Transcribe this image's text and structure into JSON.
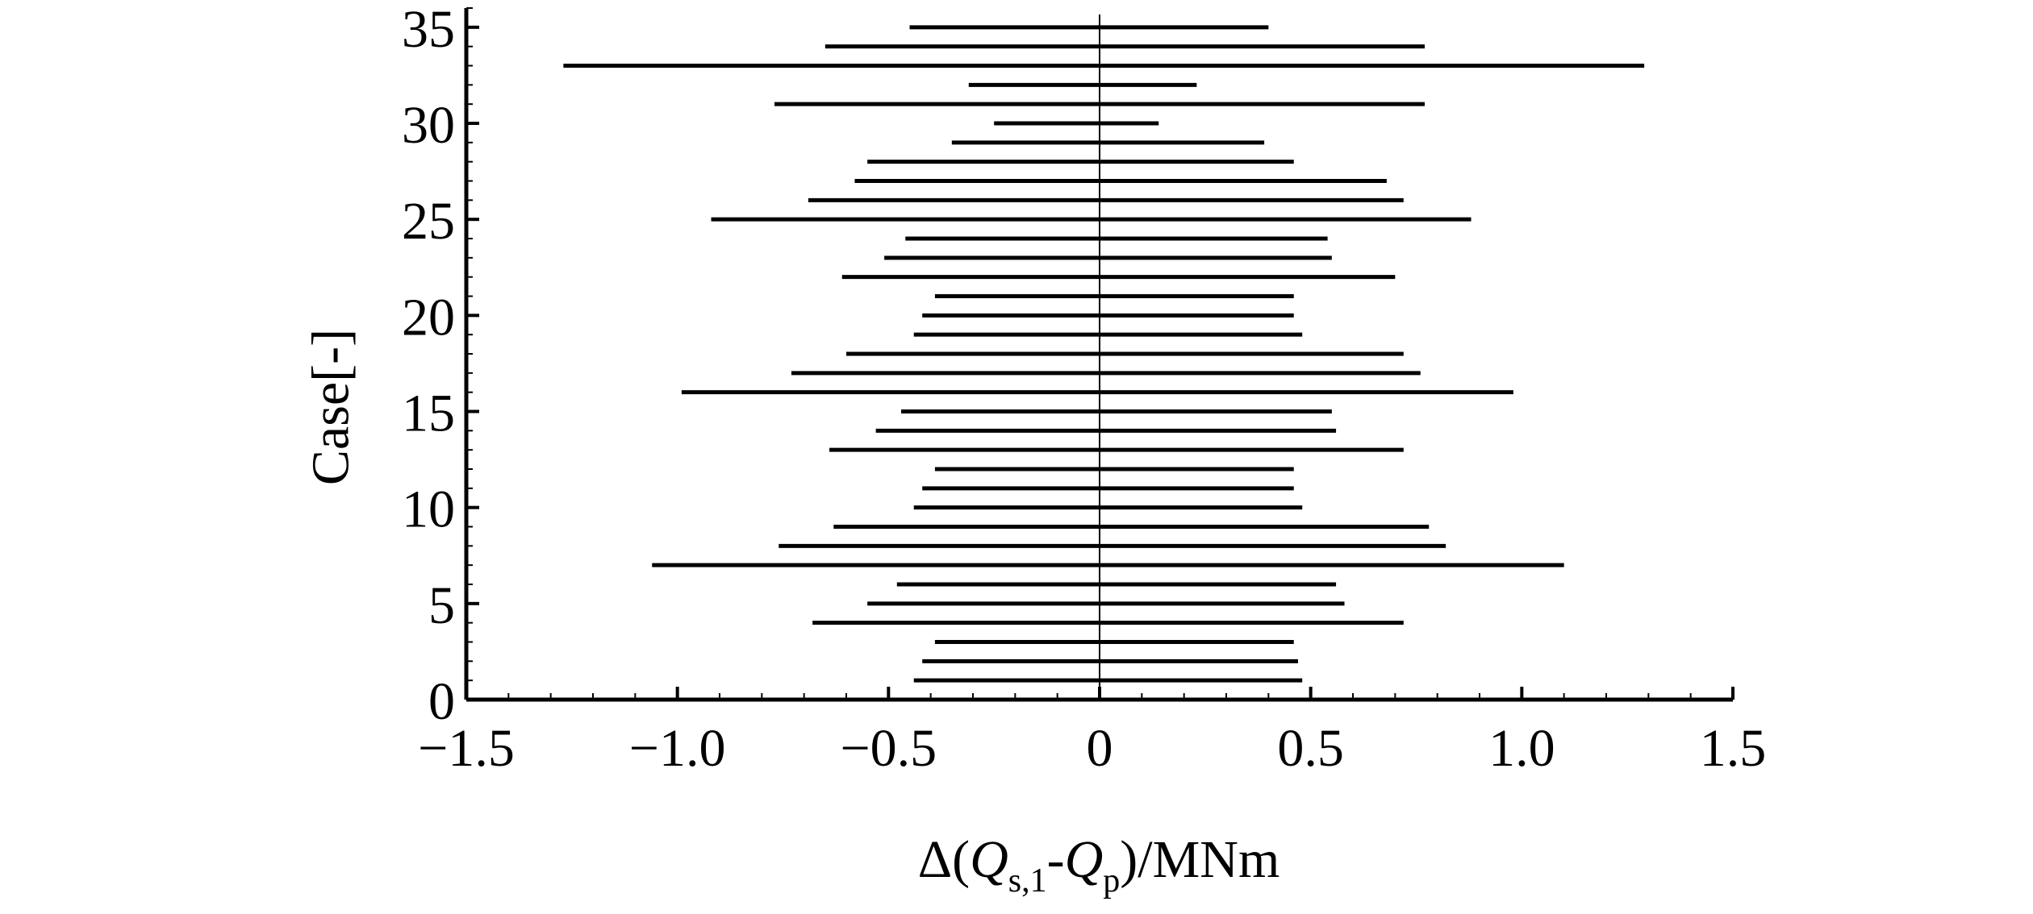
{
  "chart_data": {
    "type": "range-bar",
    "xlabel_parts": {
      "prefix": "Δ(",
      "q1": "Q",
      "sub1": "s,1",
      "dash": "-",
      "q2": "Q",
      "sub2": "p",
      "suffix": ")/MNm"
    },
    "ylabel": "Case[-]",
    "xlim": [
      -1.5,
      1.5
    ],
    "ylim": [
      0,
      36
    ],
    "xticks": [
      -1.5,
      -1.0,
      -0.5,
      0,
      0.5,
      1.0,
      1.5
    ],
    "xtick_labels": [
      "−1.5",
      "−1.0",
      "−0.5",
      "0",
      "0.5",
      "1.0",
      "1.5"
    ],
    "yticks": [
      0,
      5,
      10,
      15,
      20,
      25,
      30,
      35
    ],
    "ytick_labels": [
      "0",
      "5",
      "10",
      "15",
      "20",
      "25",
      "30",
      "35"
    ],
    "reference_line_x": 0,
    "ranges": [
      {
        "case": 1,
        "min": -0.44,
        "max": 0.48
      },
      {
        "case": 2,
        "min": -0.42,
        "max": 0.47
      },
      {
        "case": 3,
        "min": -0.39,
        "max": 0.46
      },
      {
        "case": 4,
        "min": -0.68,
        "max": 0.72
      },
      {
        "case": 5,
        "min": -0.55,
        "max": 0.58
      },
      {
        "case": 6,
        "min": -0.48,
        "max": 0.56
      },
      {
        "case": 7,
        "min": -1.06,
        "max": 1.1
      },
      {
        "case": 8,
        "min": -0.76,
        "max": 0.82
      },
      {
        "case": 9,
        "min": -0.63,
        "max": 0.78
      },
      {
        "case": 10,
        "min": -0.44,
        "max": 0.48
      },
      {
        "case": 11,
        "min": -0.42,
        "max": 0.46
      },
      {
        "case": 12,
        "min": -0.39,
        "max": 0.46
      },
      {
        "case": 13,
        "min": -0.64,
        "max": 0.72
      },
      {
        "case": 14,
        "min": -0.53,
        "max": 0.56
      },
      {
        "case": 15,
        "min": -0.47,
        "max": 0.55
      },
      {
        "case": 16,
        "min": -0.99,
        "max": 0.98
      },
      {
        "case": 17,
        "min": -0.73,
        "max": 0.76
      },
      {
        "case": 18,
        "min": -0.6,
        "max": 0.72
      },
      {
        "case": 19,
        "min": -0.44,
        "max": 0.48
      },
      {
        "case": 20,
        "min": -0.42,
        "max": 0.46
      },
      {
        "case": 21,
        "min": -0.39,
        "max": 0.46
      },
      {
        "case": 22,
        "min": -0.61,
        "max": 0.7
      },
      {
        "case": 23,
        "min": -0.51,
        "max": 0.55
      },
      {
        "case": 24,
        "min": -0.46,
        "max": 0.54
      },
      {
        "case": 25,
        "min": -0.92,
        "max": 0.88
      },
      {
        "case": 26,
        "min": -0.69,
        "max": 0.72
      },
      {
        "case": 27,
        "min": -0.58,
        "max": 0.68
      },
      {
        "case": 28,
        "min": -0.55,
        "max": 0.46
      },
      {
        "case": 29,
        "min": -0.35,
        "max": 0.39
      },
      {
        "case": 30,
        "min": -0.25,
        "max": 0.14
      },
      {
        "case": 31,
        "min": -0.77,
        "max": 0.77
      },
      {
        "case": 32,
        "min": -0.31,
        "max": 0.23
      },
      {
        "case": 33,
        "min": -1.27,
        "max": 1.29
      },
      {
        "case": 34,
        "min": -0.65,
        "max": 0.77
      },
      {
        "case": 35,
        "min": -0.45,
        "max": 0.4
      }
    ],
    "grid": false,
    "legend": "none"
  }
}
